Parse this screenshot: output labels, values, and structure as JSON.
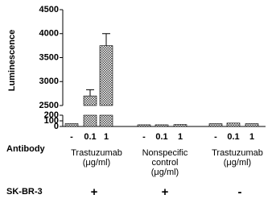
{
  "chart_data": {
    "type": "bar",
    "y_label": "Luminescence",
    "categories": [
      "-",
      "0.1",
      "1",
      "-",
      "0.1",
      "1",
      "-",
      "0.1",
      "1"
    ],
    "values": [
      50,
      2700,
      3750,
      30,
      30,
      35,
      50,
      60,
      50
    ],
    "errors": [
      10,
      130,
      250,
      5,
      5,
      5,
      10,
      15,
      10
    ],
    "ylim_segments": [
      [
        0,
        200
      ],
      [
        2500,
        4500
      ]
    ],
    "yticks": [
      0,
      100,
      200,
      2500,
      3000,
      3500,
      4000,
      4500
    ],
    "groups": [
      [
        "Trastuzumab",
        "(μg/ml)"
      ],
      [
        "Nonspecific",
        "control",
        "(μg/ml)"
      ],
      [
        "Trastuzumab",
        "(μg/ml)"
      ]
    ],
    "row_labels": [
      "Antibody",
      "SK-BR-3"
    ],
    "sk_br_3": [
      "+",
      "+",
      "-"
    ]
  }
}
